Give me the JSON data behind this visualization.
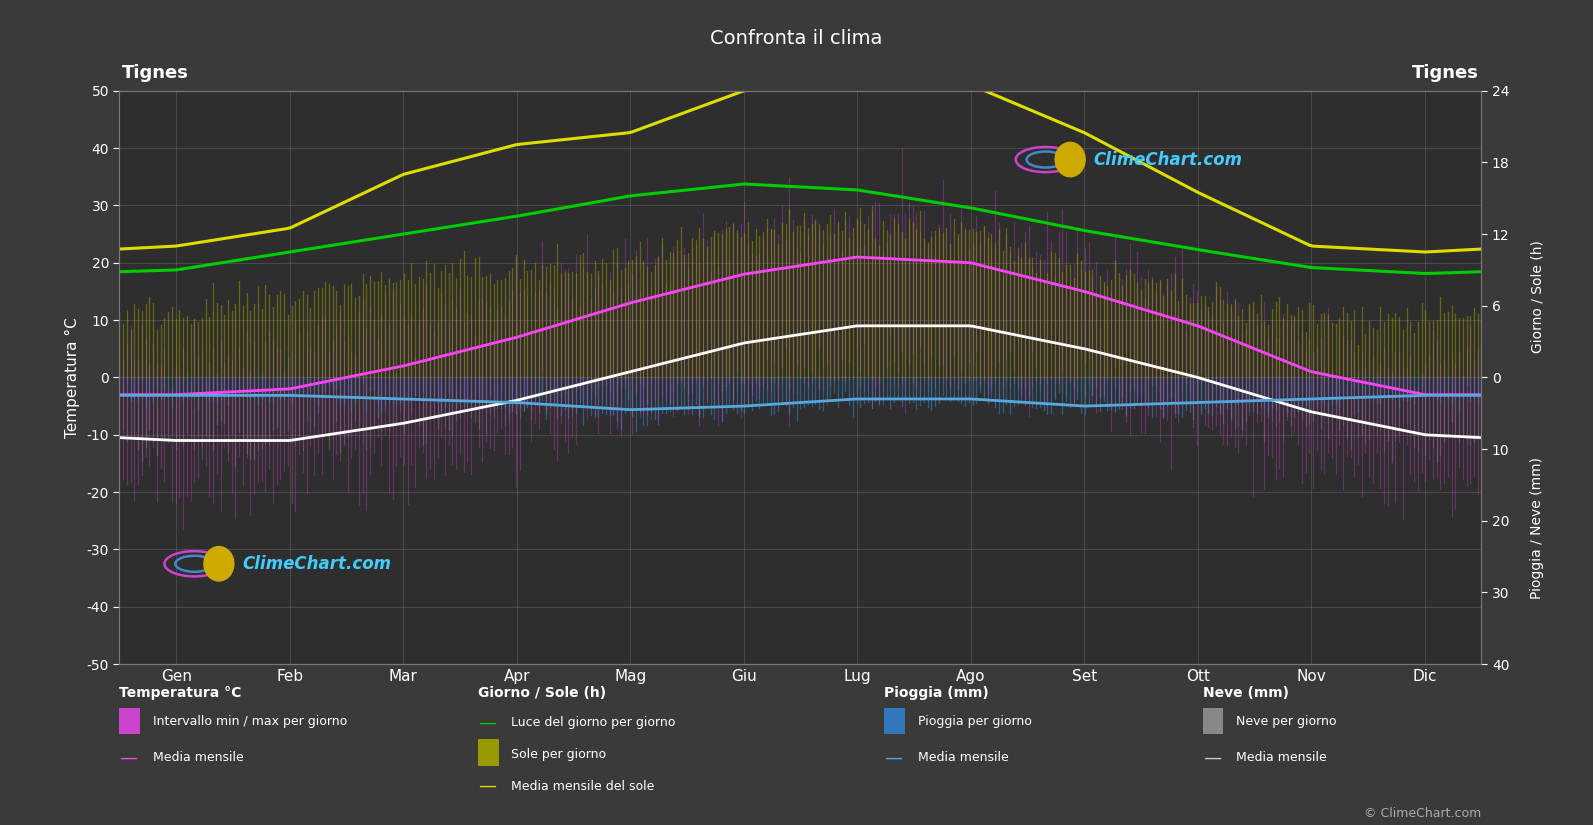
{
  "title": "Confronta il clima",
  "location_left": "Tignes",
  "location_right": "Tignes",
  "bg_color": "#3a3a3a",
  "plot_bg_color": "#2e2e2e",
  "months": [
    "Gen",
    "Feb",
    "Mar",
    "Apr",
    "Mag",
    "Giu",
    "Lug",
    "Ago",
    "Set",
    "Ott",
    "Nov",
    "Dic"
  ],
  "temp_ylim": [
    -50,
    50
  ],
  "temp_ticks": [
    -50,
    -40,
    -30,
    -20,
    -10,
    0,
    10,
    20,
    30,
    40,
    50
  ],
  "daylight_ticks": [
    0,
    6,
    12,
    18,
    24
  ],
  "rain_ticks": [
    0,
    10,
    20,
    30,
    40
  ],
  "temp_max_monthly": [
    -3,
    -2,
    2,
    7,
    13,
    18,
    21,
    20,
    15,
    9,
    1,
    -3
  ],
  "temp_min_monthly": [
    -11,
    -11,
    -8,
    -4,
    1,
    6,
    9,
    9,
    5,
    0,
    -6,
    -10
  ],
  "temp_max_daily": [
    4,
    6,
    10,
    14,
    19,
    24,
    27,
    26,
    21,
    14,
    5,
    3
  ],
  "temp_min_daily": [
    -19,
    -18,
    -15,
    -11,
    -5,
    -1,
    2,
    1,
    -2,
    -8,
    -15,
    -18
  ],
  "daylight_hours": [
    9.0,
    10.5,
    12.0,
    13.5,
    15.2,
    16.2,
    15.7,
    14.2,
    12.3,
    10.7,
    9.2,
    8.7
  ],
  "sunshine_mean": [
    11.0,
    12.5,
    17.0,
    19.5,
    20.5,
    24.0,
    25.5,
    24.5,
    20.5,
    15.5,
    11.0,
    10.5
  ],
  "sunshine_daily": [
    5.5,
    6.5,
    8.5,
    9.0,
    9.5,
    12.0,
    13.0,
    12.0,
    9.0,
    6.5,
    5.0,
    5.0
  ],
  "rain_daily_mm": [
    2.5,
    2.5,
    3.0,
    4.0,
    5.5,
    4.5,
    3.5,
    3.5,
    4.5,
    4.0,
    3.5,
    2.5
  ],
  "snow_daily_mm": [
    9.0,
    8.0,
    7.0,
    5.0,
    2.0,
    0.0,
    0.0,
    0.0,
    1.5,
    3.5,
    7.0,
    9.5
  ],
  "rain_mean_mm": [
    2.5,
    2.5,
    3.0,
    3.5,
    4.5,
    4.0,
    3.0,
    3.0,
    4.0,
    3.5,
    3.0,
    2.5
  ],
  "snow_mean_mm": [
    8.5,
    8.0,
    7.0,
    4.0,
    1.5,
    0.0,
    0.0,
    0.0,
    1.0,
    3.0,
    6.5,
    9.0
  ],
  "daylight_scale": 2.083,
  "rain_scale": 1.25,
  "grid_color": "#606060",
  "temp_color_max": "#ff44ff",
  "temp_color_min": "#ffffff",
  "temp_bar_color": "#cc44cc",
  "sunshine_bar_color": "#999900",
  "sunshine_mean_color": "#dddd00",
  "daylight_color": "#00cc00",
  "rain_bar_color": "#3377bb",
  "rain_mean_color": "#55aadd",
  "snow_bar_color": "#aaaaaa",
  "snow_mean_color": "#cccccc",
  "text_color": "#ffffff",
  "watermark_color": "#44ccff"
}
